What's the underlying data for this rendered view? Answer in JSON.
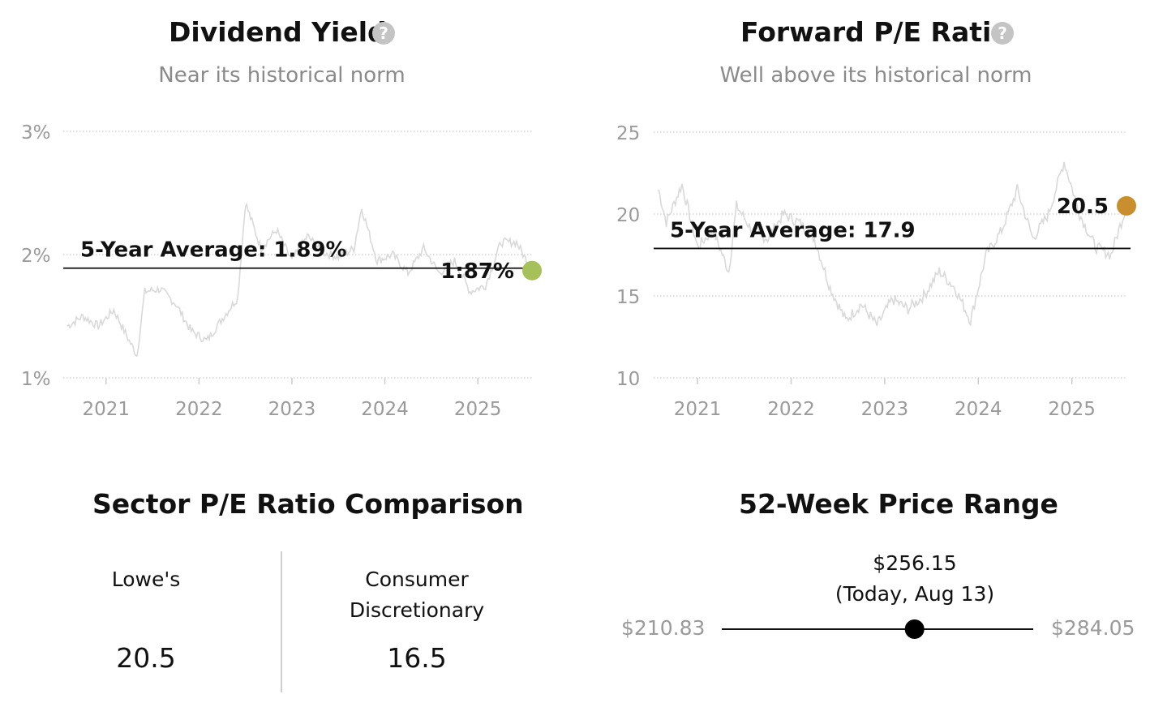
{
  "dividend": {
    "title": "Dividend Yield",
    "subtitle": "Near its historical norm",
    "help_icon": "question-icon",
    "avg_label": "5-Year Average: 1.89%",
    "current_label": "1:87%",
    "marker_color": "#a6c15a"
  },
  "pe": {
    "title": "Forward P/E Ratio",
    "subtitle": "Well above its historical norm",
    "help_icon": "question-icon",
    "avg_label": "5-Year Average: 17.9",
    "current_label": "20.5",
    "marker_color": "#c98f2e"
  },
  "sector": {
    "title": "Sector P/E Ratio Comparison",
    "left_label": "Lowe's",
    "left_value": "20.5",
    "right_label_line1": "Consumer",
    "right_label_line2": "Discretionary",
    "right_value": "16.5"
  },
  "range": {
    "title": "52-Week Price Range",
    "low": "$210.83",
    "high": "$284.05",
    "today_price": "$256.15",
    "today_label": "(Today, Aug 13)",
    "low_value": 210.83,
    "high_value": 284.05,
    "today_value": 256.15
  },
  "chart_data": [
    {
      "type": "line",
      "title": "Dividend Yield",
      "subtitle": "Near its historical norm",
      "x_ticks": [
        "2021",
        "2022",
        "2023",
        "2024",
        "2025"
      ],
      "y_ticks": [
        "1%",
        "2%",
        "3%"
      ],
      "ylim": [
        1,
        3
      ],
      "xlim": [
        "2020-08",
        "2025-08"
      ],
      "grid": true,
      "series": [
        {
          "x": [
            "2020-08",
            "2020-10",
            "2020-12",
            "2021-02",
            "2021-04",
            "2021-05",
            "2021-06",
            "2021-08",
            "2021-10",
            "2021-12",
            "2022-02",
            "2022-04",
            "2022-06",
            "2022-07",
            "2022-09",
            "2022-11",
            "2023-01",
            "2023-03",
            "2023-05",
            "2023-07",
            "2023-09",
            "2023-10",
            "2023-12",
            "2024-02",
            "2024-04",
            "2024-06",
            "2024-08",
            "2024-10",
            "2024-12",
            "2025-02",
            "2025-04",
            "2025-06",
            "2025-08"
          ],
          "y": [
            1.42,
            1.5,
            1.42,
            1.55,
            1.3,
            1.18,
            1.7,
            1.72,
            1.6,
            1.38,
            1.3,
            1.48,
            1.65,
            2.42,
            2.05,
            2.2,
            1.95,
            2.15,
            2.02,
            1.98,
            2.05,
            2.38,
            1.95,
            2.0,
            1.85,
            2.05,
            1.85,
            1.95,
            1.7,
            1.75,
            2.1,
            2.1,
            1.87
          ]
        }
      ],
      "average": 1.89,
      "current": 1.87
    },
    {
      "type": "line",
      "title": "Forward P/E Ratio",
      "subtitle": "Well above its historical norm",
      "x_ticks": [
        "2021",
        "2022",
        "2023",
        "2024",
        "2025"
      ],
      "y_ticks": [
        "10",
        "15",
        "20",
        "25"
      ],
      "ylim": [
        10,
        25
      ],
      "xlim": [
        "2020-08",
        "2025-08"
      ],
      "grid": true,
      "series": [
        {
          "x": [
            "2020-08",
            "2020-09",
            "2020-11",
            "2021-01",
            "2021-03",
            "2021-05",
            "2021-06",
            "2021-08",
            "2021-10",
            "2021-12",
            "2022-02",
            "2022-04",
            "2022-06",
            "2022-08",
            "2022-10",
            "2022-12",
            "2023-02",
            "2023-04",
            "2023-06",
            "2023-08",
            "2023-10",
            "2023-12",
            "2024-02",
            "2024-04",
            "2024-06",
            "2024-08",
            "2024-10",
            "2024-12",
            "2025-02",
            "2025-04",
            "2025-06",
            "2025-08"
          ],
          "y": [
            21.5,
            19.5,
            21.8,
            18.0,
            19.0,
            16.5,
            20.5,
            19.0,
            18.5,
            20.0,
            19.5,
            18.5,
            15.5,
            13.5,
            14.5,
            13.2,
            14.8,
            14.2,
            15.0,
            16.5,
            15.5,
            13.5,
            17.5,
            19.0,
            21.5,
            18.5,
            20.0,
            23.2,
            20.0,
            18.0,
            17.5,
            20.5
          ]
        }
      ],
      "average": 17.9,
      "current": 20.5
    }
  ]
}
